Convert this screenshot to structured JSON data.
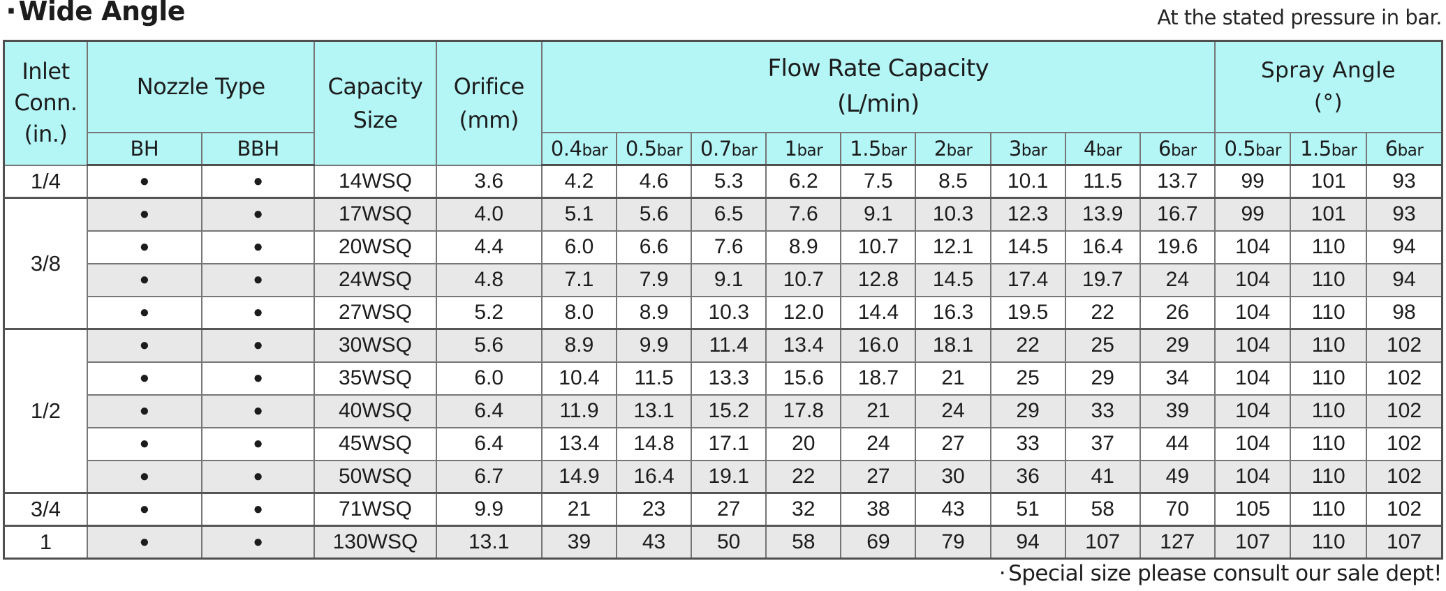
{
  "title": {
    "bullet": "·",
    "text": "Wide Angle"
  },
  "top_note": "At the stated pressure in bar.",
  "bottom_note": {
    "bullet": "·",
    "text": "Special size please consult our sale dept!"
  },
  "colors": {
    "header_bg": "#b4f5f6",
    "stripe_bg": "#e8e8e8",
    "grid_border": "#767676",
    "outer_border": "#4f4f4f"
  },
  "table": {
    "headers": {
      "inlet": "Inlet\nConn.\n(in.)",
      "nozzle_type": "Nozzle Type",
      "nozzle_sub": [
        "BH",
        "BBH"
      ],
      "capacity": "Capacity\nSize",
      "orifice": "Orifice\n(mm)",
      "flow": "Flow Rate Capacity\n(L/min)",
      "spray": "Spray Angle\n(°)",
      "flow_pressures": [
        {
          "num": "0.4",
          "unit": "bar"
        },
        {
          "num": "0.5",
          "unit": "bar"
        },
        {
          "num": "0.7",
          "unit": "bar"
        },
        {
          "num": "1",
          "unit": "bar"
        },
        {
          "num": "1.5",
          "unit": "bar"
        },
        {
          "num": "2",
          "unit": "bar"
        },
        {
          "num": "3",
          "unit": "bar"
        },
        {
          "num": "4",
          "unit": "bar"
        },
        {
          "num": "6",
          "unit": "bar"
        }
      ],
      "spray_pressures": [
        {
          "num": "0.5",
          "unit": "bar"
        },
        {
          "num": "1.5",
          "unit": "bar"
        },
        {
          "num": "6",
          "unit": "bar"
        }
      ]
    },
    "dot": "●",
    "rows": [
      {
        "inlet": "1/4",
        "span": 1,
        "bh": true,
        "bbh": true,
        "capacity": "14WSQ",
        "orifice": "3.6",
        "flow": [
          "4.2",
          "4.6",
          "5.3",
          "6.2",
          "7.5",
          "8.5",
          "10.1",
          "11.5",
          "13.7"
        ],
        "spray": [
          "99",
          "101",
          "93"
        ]
      },
      {
        "inlet": "3/8",
        "span": 4,
        "bh": true,
        "bbh": true,
        "capacity": "17WSQ",
        "orifice": "4.0",
        "flow": [
          "5.1",
          "5.6",
          "6.5",
          "7.6",
          "9.1",
          "10.3",
          "12.3",
          "13.9",
          "16.7"
        ],
        "spray": [
          "99",
          "101",
          "93"
        ]
      },
      {
        "bh": true,
        "bbh": true,
        "capacity": "20WSQ",
        "orifice": "4.4",
        "flow": [
          "6.0",
          "6.6",
          "7.6",
          "8.9",
          "10.7",
          "12.1",
          "14.5",
          "16.4",
          "19.6"
        ],
        "spray": [
          "104",
          "110",
          "94"
        ]
      },
      {
        "bh": true,
        "bbh": true,
        "capacity": "24WSQ",
        "orifice": "4.8",
        "flow": [
          "7.1",
          "7.9",
          "9.1",
          "10.7",
          "12.8",
          "14.5",
          "17.4",
          "19.7",
          "24"
        ],
        "spray": [
          "104",
          "110",
          "94"
        ]
      },
      {
        "bh": true,
        "bbh": true,
        "capacity": "27WSQ",
        "orifice": "5.2",
        "flow": [
          "8.0",
          "8.9",
          "10.3",
          "12.0",
          "14.4",
          "16.3",
          "19.5",
          "22",
          "26"
        ],
        "spray": [
          "104",
          "110",
          "98"
        ]
      },
      {
        "inlet": "1/2",
        "span": 5,
        "bh": true,
        "bbh": true,
        "capacity": "30WSQ",
        "orifice": "5.6",
        "flow": [
          "8.9",
          "9.9",
          "11.4",
          "13.4",
          "16.0",
          "18.1",
          "22",
          "25",
          "29"
        ],
        "spray": [
          "104",
          "110",
          "102"
        ]
      },
      {
        "bh": true,
        "bbh": true,
        "capacity": "35WSQ",
        "orifice": "6.0",
        "flow": [
          "10.4",
          "11.5",
          "13.3",
          "15.6",
          "18.7",
          "21",
          "25",
          "29",
          "34"
        ],
        "spray": [
          "104",
          "110",
          "102"
        ]
      },
      {
        "bh": true,
        "bbh": true,
        "capacity": "40WSQ",
        "orifice": "6.4",
        "flow": [
          "11.9",
          "13.1",
          "15.2",
          "17.8",
          "21",
          "24",
          "29",
          "33",
          "39"
        ],
        "spray": [
          "104",
          "110",
          "102"
        ]
      },
      {
        "bh": true,
        "bbh": true,
        "capacity": "45WSQ",
        "orifice": "6.4",
        "flow": [
          "13.4",
          "14.8",
          "17.1",
          "20",
          "24",
          "27",
          "33",
          "37",
          "44"
        ],
        "spray": [
          "104",
          "110",
          "102"
        ]
      },
      {
        "bh": true,
        "bbh": true,
        "capacity": "50WSQ",
        "orifice": "6.7",
        "flow": [
          "14.9",
          "16.4",
          "19.1",
          "22",
          "27",
          "30",
          "36",
          "41",
          "49"
        ],
        "spray": [
          "104",
          "110",
          "102"
        ]
      },
      {
        "inlet": "3/4",
        "span": 1,
        "bh": true,
        "bbh": true,
        "capacity": "71WSQ",
        "orifice": "9.9",
        "flow": [
          "21",
          "23",
          "27",
          "32",
          "38",
          "43",
          "51",
          "58",
          "70"
        ],
        "spray": [
          "105",
          "110",
          "102"
        ]
      },
      {
        "inlet": "1",
        "span": 1,
        "bh": true,
        "bbh": true,
        "capacity": "130WSQ",
        "orifice": "13.1",
        "flow": [
          "39",
          "43",
          "50",
          "58",
          "69",
          "79",
          "94",
          "107",
          "127"
        ],
        "spray": [
          "107",
          "110",
          "107"
        ]
      }
    ]
  }
}
